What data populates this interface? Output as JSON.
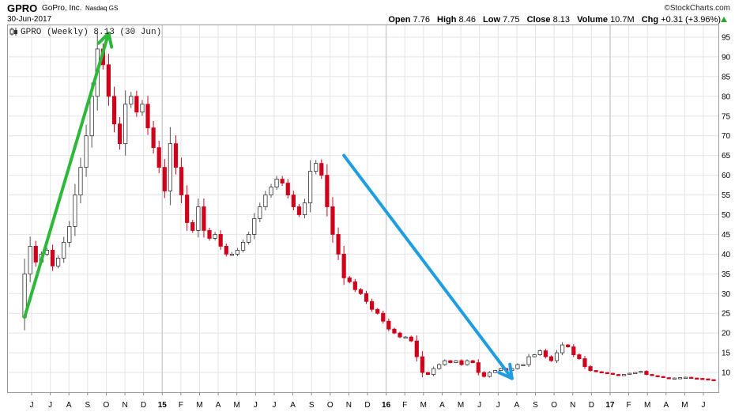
{
  "header": {
    "symbol": "GPRO",
    "company": "GoPro, Inc.",
    "exchange": "Nasdaq GS",
    "date": "30-Jun-2017",
    "brand": "©StockCharts.com",
    "open_label": "Open",
    "open": "7.76",
    "high_label": "High",
    "high": "8.46",
    "low_label": "Low",
    "low": "7.75",
    "close_label": "Close",
    "close": "8.13",
    "volume_label": "Volume",
    "volume": "10.7M",
    "chg_label": "Chg",
    "chg": "+0.31 (+3.96%)"
  },
  "colors": {
    "up": "#ffffff",
    "down": "#d0021b",
    "wick": "#555555",
    "grid": "#e4e4e4",
    "up_arrow": "#2db83a",
    "down_arrow": "#1e9ee0"
  },
  "chart_data": {
    "type": "candlestick",
    "legend": "GPRO (Weekly) 8.13 (30 Jun)",
    "legend_icon": "candlestick-icon",
    "y_axis_side": "right",
    "ylim": [
      5,
      98
    ],
    "yticks": [
      10,
      15,
      20,
      25,
      30,
      35,
      40,
      45,
      50,
      55,
      60,
      65,
      70,
      75,
      80,
      85,
      90,
      95
    ],
    "x_tick_labels": [
      "J",
      "J",
      "A",
      "S",
      "O",
      "N",
      "D",
      "15",
      "F",
      "M",
      "A",
      "M",
      "J",
      "J",
      "A",
      "S",
      "O",
      "N",
      "D",
      "16",
      "F",
      "M",
      "A",
      "M",
      "J",
      "J",
      "A",
      "S",
      "O",
      "N",
      "D",
      "17",
      "F",
      "M",
      "A",
      "M",
      "J"
    ],
    "bold_ticks": [
      "15",
      "16",
      "17"
    ],
    "weeks_total": 158,
    "anchors": [
      [
        0,
        24
      ],
      [
        1,
        35
      ],
      [
        2,
        42
      ],
      [
        3,
        38
      ],
      [
        4,
        40
      ],
      [
        5,
        41
      ],
      [
        6,
        37
      ],
      [
        7,
        39
      ],
      [
        8,
        43
      ],
      [
        9,
        47
      ],
      [
        10,
        55
      ],
      [
        11,
        62
      ],
      [
        12,
        70
      ],
      [
        13,
        80
      ],
      [
        14,
        92
      ],
      [
        15,
        88
      ],
      [
        16,
        80
      ],
      [
        17,
        73
      ],
      [
        18,
        68
      ],
      [
        19,
        78
      ],
      [
        20,
        80
      ],
      [
        21,
        76
      ],
      [
        22,
        78
      ],
      [
        23,
        72
      ],
      [
        24,
        67
      ],
      [
        25,
        62
      ],
      [
        26,
        56
      ],
      [
        27,
        68
      ],
      [
        28,
        62
      ],
      [
        29,
        55
      ],
      [
        30,
        48
      ],
      [
        31,
        46
      ],
      [
        32,
        52
      ],
      [
        33,
        46
      ],
      [
        34,
        44
      ],
      [
        35,
        45
      ],
      [
        36,
        42
      ],
      [
        37,
        40
      ],
      [
        38,
        40
      ],
      [
        39,
        41
      ],
      [
        40,
        43
      ],
      [
        41,
        45
      ],
      [
        42,
        49
      ],
      [
        43,
        52
      ],
      [
        44,
        55
      ],
      [
        45,
        57
      ],
      [
        46,
        59
      ],
      [
        47,
        58
      ],
      [
        48,
        55
      ],
      [
        49,
        52
      ],
      [
        50,
        50
      ],
      [
        51,
        53
      ],
      [
        52,
        61
      ],
      [
        53,
        63
      ],
      [
        54,
        60
      ],
      [
        55,
        52
      ],
      [
        56,
        45
      ],
      [
        57,
        40
      ],
      [
        58,
        34
      ],
      [
        59,
        33
      ],
      [
        60,
        31
      ],
      [
        61,
        30
      ],
      [
        62,
        28
      ],
      [
        63,
        26
      ],
      [
        64,
        25
      ],
      [
        65,
        23
      ],
      [
        66,
        21
      ],
      [
        67,
        20
      ],
      [
        68,
        19
      ],
      [
        69,
        19
      ],
      [
        70,
        18
      ],
      [
        71,
        14
      ],
      [
        72,
        10
      ],
      [
        73,
        9.5
      ],
      [
        74,
        11
      ],
      [
        75,
        12
      ],
      [
        76,
        13
      ],
      [
        77,
        12.5
      ],
      [
        78,
        13
      ],
      [
        79,
        12
      ],
      [
        80,
        13
      ],
      [
        81,
        12.5
      ],
      [
        82,
        10
      ],
      [
        83,
        9
      ],
      [
        84,
        10
      ],
      [
        85,
        10.5
      ],
      [
        86,
        11
      ],
      [
        87,
        10.5
      ],
      [
        88,
        11
      ],
      [
        89,
        12
      ],
      [
        90,
        12
      ],
      [
        91,
        14
      ],
      [
        92,
        14.5
      ],
      [
        93,
        15.5
      ],
      [
        94,
        14
      ],
      [
        95,
        13
      ],
      [
        96,
        15
      ],
      [
        97,
        17
      ],
      [
        98,
        16.5
      ],
      [
        99,
        14.5
      ],
      [
        100,
        13.5
      ],
      [
        101,
        11.5
      ],
      [
        102,
        10.5
      ],
      [
        103,
        10.2
      ],
      [
        104,
        10
      ],
      [
        105,
        9.8
      ],
      [
        106,
        9.5
      ],
      [
        107,
        9.3
      ],
      [
        108,
        9.5
      ],
      [
        109,
        9.8
      ],
      [
        110,
        10
      ],
      [
        111,
        10.3
      ],
      [
        112,
        9.5
      ],
      [
        113,
        9.2
      ],
      [
        114,
        9
      ],
      [
        115,
        8.7
      ],
      [
        116,
        8.5
      ],
      [
        117,
        8.6
      ],
      [
        118,
        8.7
      ],
      [
        119,
        8.8
      ],
      [
        120,
        8.6
      ],
      [
        121,
        8.5
      ],
      [
        122,
        8.4
      ],
      [
        123,
        8.2
      ],
      [
        124,
        8.13
      ]
    ],
    "annotations": [
      {
        "kind": "arrow",
        "color": "up_arrow",
        "from": [
          1,
          24
        ],
        "to": [
          16,
          96
        ]
      },
      {
        "kind": "arrow",
        "color": "down_arrow",
        "from": [
          58,
          65
        ],
        "to": [
          88,
          8.5
        ]
      }
    ]
  }
}
